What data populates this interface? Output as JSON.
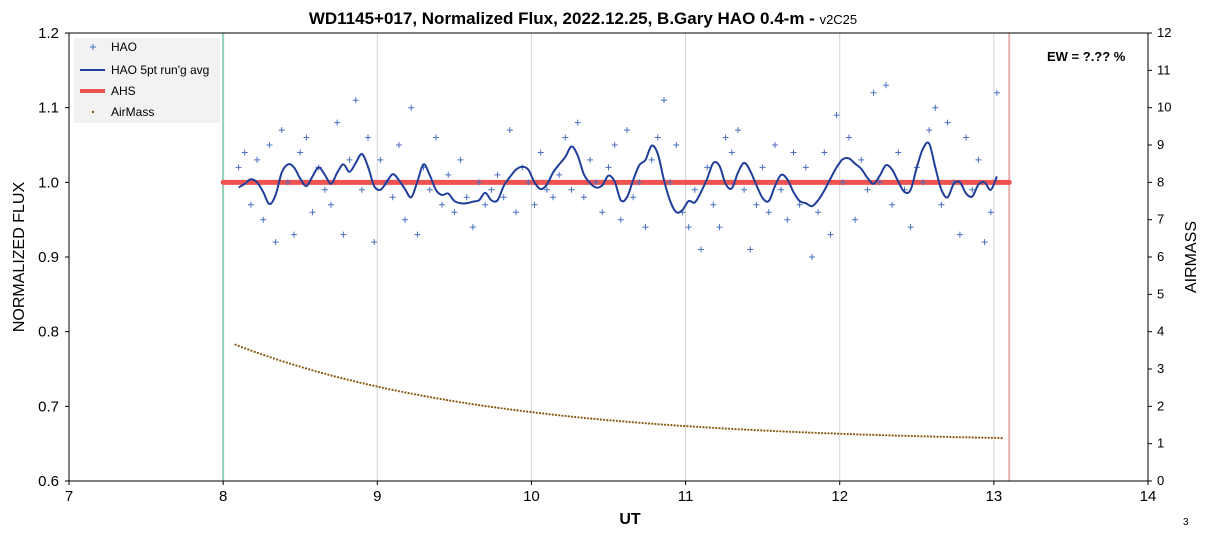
{
  "chart_data": {
    "type": "scatter",
    "title": "WD1145+017, Normalized Flux, 2022.12.25, B.Gary HAO 0.4-m - ",
    "title_suffix": "v2C25",
    "xlabel": "UT",
    "ylabel": "NORMALIZED FLUX",
    "y2label": "AIRMASS",
    "xlim": [
      7,
      14
    ],
    "ylim": [
      0.6,
      1.2
    ],
    "y2lim": [
      0,
      12
    ],
    "xticks": [
      "7",
      "8",
      "9",
      "10",
      "11",
      "12",
      "13",
      "14"
    ],
    "yticks": [
      "0.6",
      "0.7",
      "0.8",
      "0.9",
      "1.0",
      "1.1",
      "1.2"
    ],
    "y2ticks": [
      "0",
      "1",
      "2",
      "3",
      "4",
      "5",
      "6",
      "7",
      "8",
      "9",
      "10",
      "11",
      "12"
    ],
    "grid": "vertical",
    "legend_position": "top-left",
    "annotation": "EW = ?.?? %",
    "corner_note": "3",
    "vlines": [
      {
        "x": 8.0,
        "color": "#8fd0b8"
      },
      {
        "x": 13.1,
        "color": "#e8b0b0"
      }
    ],
    "colors": {
      "hao": "#4a6fc2",
      "avg": "#1f3e9a",
      "ahs": "#ef5350",
      "airmass": "#8a5a10",
      "grid": "#d4d4d4",
      "legend_bg": "#f2f2f2"
    },
    "series": [
      {
        "name": "HAO",
        "kind": "plus",
        "x": [
          8.1,
          8.14,
          8.18,
          8.22,
          8.26,
          8.3,
          8.34,
          8.38,
          8.42,
          8.46,
          8.5,
          8.54,
          8.58,
          8.62,
          8.66,
          8.7,
          8.74,
          8.78,
          8.82,
          8.86,
          8.9,
          8.94,
          8.98,
          9.02,
          9.06,
          9.1,
          9.14,
          9.18,
          9.22,
          9.26,
          9.3,
          9.34,
          9.38,
          9.42,
          9.46,
          9.5,
          9.54,
          9.58,
          9.62,
          9.66,
          9.7,
          9.74,
          9.78,
          9.82,
          9.86,
          9.9,
          9.94,
          9.98,
          10.02,
          10.06,
          10.1,
          10.14,
          10.18,
          10.22,
          10.26,
          10.3,
          10.34,
          10.38,
          10.42,
          10.46,
          10.5,
          10.54,
          10.58,
          10.62,
          10.66,
          10.7,
          10.74,
          10.78,
          10.82,
          10.86,
          10.9,
          10.94,
          10.98,
          11.02,
          11.06,
          11.1,
          11.14,
          11.18,
          11.22,
          11.26,
          11.3,
          11.34,
          11.38,
          11.42,
          11.46,
          11.5,
          11.54,
          11.58,
          11.62,
          11.66,
          11.7,
          11.74,
          11.78,
          11.82,
          11.86,
          11.9,
          11.94,
          11.98,
          12.02,
          12.06,
          12.1,
          12.14,
          12.18,
          12.22,
          12.26,
          12.3,
          12.34,
          12.38,
          12.42,
          12.46,
          12.5,
          12.54,
          12.58,
          12.62,
          12.66,
          12.7,
          12.74,
          12.78,
          12.82,
          12.86,
          12.9,
          12.94,
          12.98,
          13.02
        ],
        "y": [
          1.02,
          1.04,
          0.97,
          1.03,
          0.95,
          1.05,
          0.92,
          1.07,
          1.0,
          0.93,
          1.04,
          1.06,
          0.96,
          1.02,
          0.99,
          0.97,
          1.08,
          0.93,
          1.03,
          1.11,
          0.99,
          1.06,
          0.92,
          1.03,
          1.0,
          0.98,
          1.05,
          0.95,
          1.1,
          0.93,
          1.02,
          0.99,
          1.06,
          0.97,
          1.01,
          0.96,
          1.03,
          0.98,
          0.94,
          1.0,
          0.97,
          0.99,
          1.01,
          0.98,
          1.07,
          0.96,
          1.02,
          1.0,
          0.97,
          1.04,
          0.99,
          0.98,
          1.01,
          1.06,
          0.99,
          1.08,
          0.98,
          1.03,
          1.0,
          0.96,
          1.02,
          1.05,
          0.95,
          1.07,
          0.98,
          1.0,
          0.94,
          1.03,
          1.06,
          1.11,
          1.0,
          1.05,
          0.96,
          0.94,
          0.99,
          0.91,
          1.02,
          0.97,
          0.94,
          1.06,
          1.04,
          1.07,
          0.99,
          0.91,
          0.97,
          1.02,
          0.96,
          1.05,
          0.99,
          0.95,
          1.04,
          0.97,
          1.02,
          0.9,
          0.96,
          1.04,
          0.93,
          1.09,
          1.0,
          1.06,
          0.95,
          1.03,
          0.99,
          1.12,
          1.0,
          1.13,
          0.97,
          1.04,
          0.99,
          0.94,
          1.02,
          1.0,
          1.07,
          1.1,
          0.97,
          1.08,
          1.0,
          0.93,
          1.06,
          0.99,
          1.03,
          0.92,
          0.96,
          1.12
        ]
      },
      {
        "name": "HAO 5pt run'g avg",
        "kind": "line",
        "x": [
          8.1,
          8.14,
          8.18,
          8.22,
          8.26,
          8.3,
          8.34,
          8.38,
          8.42,
          8.46,
          8.5,
          8.54,
          8.58,
          8.62,
          8.66,
          8.7,
          8.74,
          8.78,
          8.82,
          8.86,
          8.9,
          8.94,
          8.98,
          9.02,
          9.06,
          9.1,
          9.14,
          9.18,
          9.22,
          9.26,
          9.3,
          9.34,
          9.38,
          9.42,
          9.46,
          9.5,
          9.54,
          9.58,
          9.62,
          9.66,
          9.7,
          9.74,
          9.78,
          9.82,
          9.86,
          9.9,
          9.94,
          9.98,
          10.02,
          10.06,
          10.1,
          10.14,
          10.18,
          10.22,
          10.26,
          10.3,
          10.34,
          10.38,
          10.42,
          10.46,
          10.5,
          10.54,
          10.58,
          10.62,
          10.66,
          10.7,
          10.74,
          10.78,
          10.82,
          10.86,
          10.9,
          10.94,
          10.98,
          11.02,
          11.06,
          11.1,
          11.14,
          11.18,
          11.22,
          11.26,
          11.3,
          11.34,
          11.38,
          11.42,
          11.46,
          11.5,
          11.54,
          11.58,
          11.62,
          11.66,
          11.7,
          11.74,
          11.78,
          11.82,
          11.86,
          11.9,
          11.94,
          11.98,
          12.02,
          12.06,
          12.1,
          12.14,
          12.18,
          12.22,
          12.26,
          12.3,
          12.34,
          12.38,
          12.42,
          12.46,
          12.5,
          12.54,
          12.58,
          12.62,
          12.66,
          12.7,
          12.74,
          12.78,
          12.82,
          12.86,
          12.9,
          12.94,
          12.98,
          13.02
        ],
        "y": [
          0.993,
          0.998,
          1.004,
          1.0,
          0.987,
          0.971,
          0.983,
          1.013,
          1.024,
          1.02,
          1.005,
          0.995,
          1.008,
          1.02,
          1.01,
          0.998,
          1.013,
          1.024,
          1.014,
          1.026,
          1.038,
          1.021,
          0.995,
          0.99,
          1.0,
          1.011,
          1.003,
          0.991,
          0.98,
          1.001,
          1.024,
          1.01,
          0.99,
          0.983,
          0.985,
          0.975,
          0.972,
          0.972,
          0.974,
          0.976,
          0.986,
          0.976,
          0.976,
          0.995,
          1.007,
          1.017,
          1.021,
          1.017,
          1.0,
          0.991,
          0.997,
          1.013,
          1.024,
          1.034,
          1.048,
          1.036,
          1.011,
          0.999,
          0.993,
          0.996,
          1.009,
          1.001,
          0.976,
          0.98,
          1.003,
          1.023,
          1.03,
          1.049,
          1.038,
          1.003,
          0.975,
          0.96,
          0.963,
          0.975,
          0.973,
          0.987,
          1.005,
          1.026,
          1.022,
          0.998,
          0.992,
          1.013,
          1.026,
          1.015,
          0.996,
          0.979,
          0.975,
          0.995,
          1.01,
          1.004,
          0.987,
          0.975,
          0.972,
          0.968,
          0.976,
          0.989,
          1.005,
          1.02,
          1.031,
          1.032,
          1.025,
          1.018,
          1.006,
          0.998,
          1.009,
          1.023,
          1.017,
          1.001,
          0.987,
          0.99,
          1.02,
          1.045,
          1.052,
          1.02,
          0.99,
          0.98,
          0.998,
          1.0,
          0.985,
          0.981,
          0.997,
          1.0,
          0.99,
          1.008
        ]
      },
      {
        "name": "AHS",
        "kind": "hline",
        "x": [
          8.0,
          13.1
        ],
        "y": [
          1.0,
          1.0
        ]
      },
      {
        "name": "AirMass",
        "kind": "dots",
        "axis": "right",
        "x_start": 8.08,
        "x_end": 13.05,
        "airmass_start": 3.65,
        "airmass_end": 1.15
      }
    ]
  }
}
